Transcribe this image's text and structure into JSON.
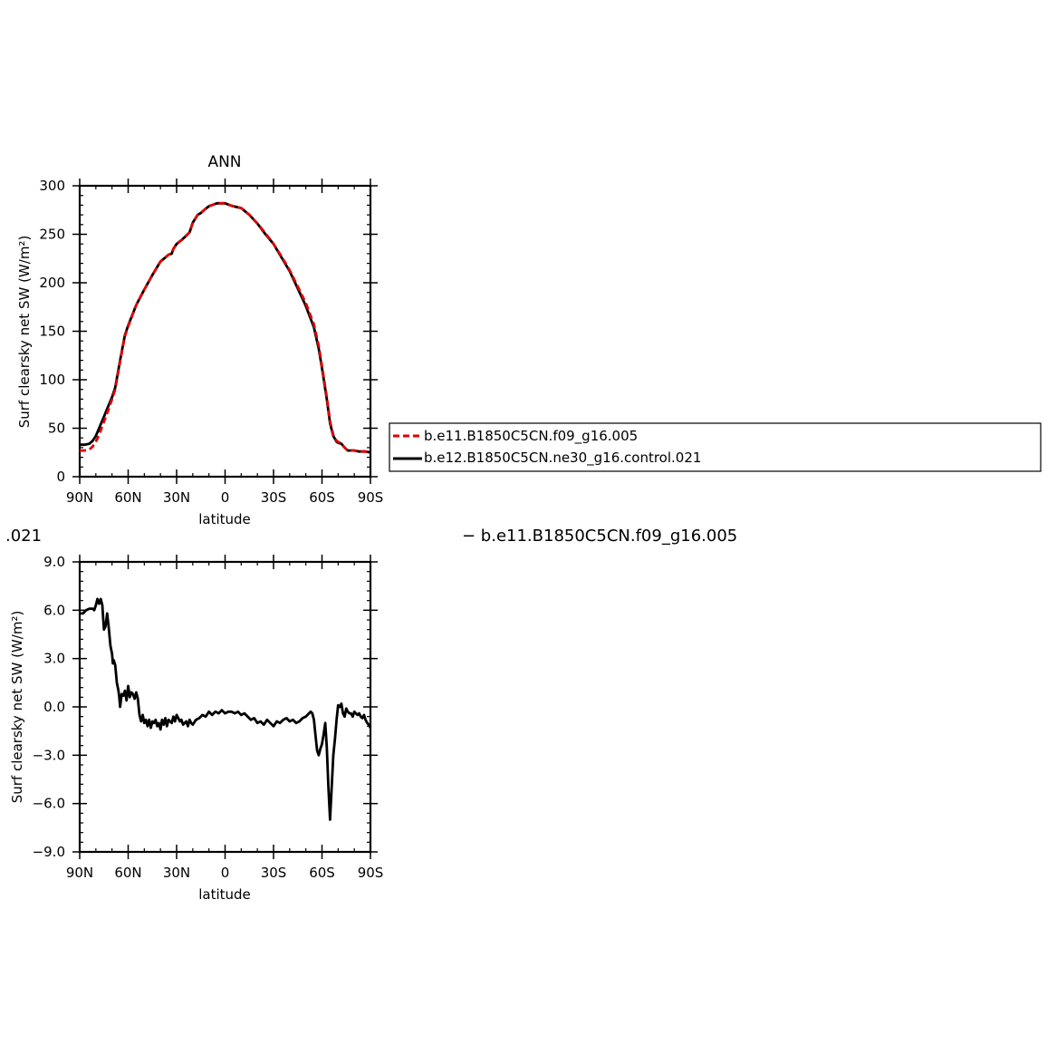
{
  "top_panel": {
    "title": "ANN",
    "xlabel": "latitude",
    "ylabel": "Surf clearsky net SW (W/m²)"
  },
  "bottom_panel": {
    "xlabel": "latitude",
    "ylabel": "Surf clearsky net SW (W/m²)"
  },
  "legend": {
    "entries": [
      {
        "label": "b.e11.B1850C5CN.f09_g16.005",
        "color": "#e00000",
        "style": "dashed"
      },
      {
        "label": "b.e12.B1850C5CN.ne30_g16.control.021",
        "color": "#000000",
        "style": "solid"
      }
    ]
  },
  "overlap_text": {
    "left_fragment": ".021",
    "right_fragment": "− b.e11.B1850C5CN.f09_g16.005"
  },
  "chart_data": [
    {
      "type": "line",
      "title": "ANN",
      "xlabel": "latitude",
      "ylabel": "Surf clearsky net SW (W/m²)",
      "x_ticks": [
        {
          "value": 90,
          "label": "90N"
        },
        {
          "value": 60,
          "label": "60N"
        },
        {
          "value": 30,
          "label": "30N"
        },
        {
          "value": 0,
          "label": "0"
        },
        {
          "value": -30,
          "label": "30S"
        },
        {
          "value": -60,
          "label": "60S"
        },
        {
          "value": -90,
          "label": "90S"
        }
      ],
      "xlim": [
        90,
        -90
      ],
      "ylim": [
        0,
        300
      ],
      "y_ticks": [
        0,
        50,
        100,
        150,
        200,
        250,
        300
      ],
      "series": [
        {
          "name": "b.e12.B1850C5CN.ne30_g16.control.021",
          "color": "#000000",
          "dash": "solid",
          "x": [
            90,
            87,
            84,
            82,
            80,
            78,
            75,
            72,
            70,
            68,
            65,
            62,
            60,
            55,
            50,
            45,
            40,
            37,
            35,
            33,
            32,
            30,
            27,
            25,
            22,
            20,
            17,
            15,
            13,
            10,
            5,
            2,
            0,
            -3,
            -5,
            -10,
            -15,
            -20,
            -25,
            -30,
            -35,
            -40,
            -45,
            -50,
            -55,
            -58,
            -60,
            -63,
            -65,
            -67,
            -69,
            -70,
            -72,
            -74,
            -76,
            -78,
            -80,
            -83,
            -85,
            -87,
            -90
          ],
          "y": [
            33,
            33,
            34,
            37,
            42,
            50,
            62,
            74,
            82,
            92,
            120,
            146,
            156,
            177,
            193,
            208,
            222,
            226,
            229,
            230,
            235,
            240,
            244,
            247,
            252,
            262,
            270,
            272,
            275,
            279,
            282,
            282,
            282,
            280,
            279,
            277,
            270,
            261,
            250,
            240,
            226,
            212,
            194,
            176,
            154,
            132,
            112,
            80,
            55,
            42,
            36,
            35,
            34,
            30,
            27,
            27,
            27,
            26,
            26,
            26,
            25
          ]
        },
        {
          "name": "b.e11.B1850C5CN.f09_g16.005",
          "color": "#e00000",
          "dash": "dashed",
          "x": [
            90,
            87,
            84,
            82,
            80,
            78,
            75,
            72,
            70,
            68,
            65,
            62,
            60,
            55,
            50,
            45,
            40,
            37,
            35,
            33,
            32,
            30,
            27,
            25,
            22,
            20,
            17,
            15,
            13,
            10,
            5,
            2,
            0,
            -3,
            -5,
            -10,
            -15,
            -20,
            -25,
            -30,
            -35,
            -40,
            -45,
            -50,
            -55,
            -58,
            -60,
            -63,
            -65,
            -67,
            -69,
            -70,
            -72,
            -74,
            -76,
            -78,
            -80,
            -83,
            -85,
            -87,
            -90
          ],
          "y": [
            27,
            27,
            28,
            31,
            36,
            43,
            57,
            70,
            80,
            90,
            119,
            145,
            155,
            177,
            193,
            208,
            222,
            226,
            229,
            230,
            235,
            240,
            244,
            247,
            252,
            262,
            270,
            272,
            275,
            279,
            282,
            282,
            282,
            280,
            279,
            277,
            270,
            261,
            251,
            240,
            227,
            213,
            196,
            179,
            157,
            135,
            114,
            82,
            57,
            43,
            37,
            36,
            34,
            30,
            27,
            27,
            27,
            26,
            26,
            26,
            25
          ]
        }
      ]
    },
    {
      "type": "line",
      "xlabel": "latitude",
      "ylabel": "Surf clearsky net SW (W/m²)",
      "x_ticks": [
        {
          "value": 90,
          "label": "90N"
        },
        {
          "value": 60,
          "label": "60N"
        },
        {
          "value": 30,
          "label": "30N"
        },
        {
          "value": 0,
          "label": "0"
        },
        {
          "value": -30,
          "label": "30S"
        },
        {
          "value": -60,
          "label": "60S"
        },
        {
          "value": -90,
          "label": "90S"
        }
      ],
      "xlim": [
        90,
        -90
      ],
      "ylim": [
        -9.0,
        9.0
      ],
      "y_ticks": [
        {
          "value": 9,
          "label": "9.0"
        },
        {
          "value": 6,
          "label": "6.0"
        },
        {
          "value": 3,
          "label": "3.0"
        },
        {
          "value": 0,
          "label": "0.0"
        },
        {
          "value": -3,
          "label": "−3.0"
        },
        {
          "value": -6,
          "label": "−6.0"
        },
        {
          "value": -9,
          "label": "−9.0"
        }
      ],
      "series": [
        {
          "color": "#000000",
          "dash": "solid",
          "x": [
            90,
            88,
            86,
            84,
            82,
            81,
            80,
            79,
            78,
            77,
            76,
            75.5,
            75,
            74,
            73,
            72,
            71,
            70,
            69.5,
            69,
            68,
            67,
            66,
            65.5,
            65,
            64,
            63,
            62,
            61,
            60,
            59,
            58,
            57,
            56,
            55,
            54,
            53,
            52,
            51,
            50,
            49,
            48,
            47,
            46,
            45,
            44,
            43,
            42,
            41,
            40,
            39,
            38,
            37,
            36,
            35,
            34,
            33,
            32,
            31,
            30,
            29,
            28,
            27,
            26,
            25,
            24,
            23,
            22,
            21,
            20,
            18,
            16,
            14,
            12,
            10,
            8,
            6,
            4,
            2,
            0,
            -2,
            -4,
            -6,
            -8,
            -10,
            -12,
            -14,
            -16,
            -18,
            -20,
            -22,
            -24,
            -26,
            -28,
            -30,
            -32,
            -34,
            -36,
            -38,
            -40,
            -42,
            -44,
            -46,
            -48,
            -50,
            -52,
            -53,
            -54,
            -55,
            -56,
            -57,
            -58,
            -59,
            -60,
            -61,
            -62,
            -63,
            -64,
            -65,
            -66,
            -67,
            -68,
            -69,
            -70,
            -71,
            -72,
            -73,
            -74,
            -75,
            -76,
            -77,
            -78,
            -79,
            -80,
            -81,
            -82,
            -83,
            -84,
            -85,
            -86,
            -87,
            -88,
            -89,
            -90
          ],
          "y": [
            5.8,
            5.8,
            6.0,
            6.1,
            6.1,
            6.0,
            6.3,
            6.7,
            6.4,
            6.7,
            6.3,
            5.5,
            4.8,
            5.0,
            5.8,
            4.9,
            3.8,
            3.3,
            2.7,
            2.9,
            2.6,
            1.5,
            1.0,
            0.6,
            0.0,
            0.8,
            0.7,
            1.0,
            0.4,
            1.3,
            0.6,
            0.9,
            0.8,
            0.5,
            0.9,
            0.5,
            -0.5,
            -0.9,
            -0.5,
            -1.0,
            -0.8,
            -1.2,
            -0.8,
            -1.3,
            -0.9,
            -1.0,
            -0.8,
            -1.2,
            -1.0,
            -1.4,
            -0.8,
            -1.1,
            -0.7,
            -1.2,
            -0.8,
            -0.9,
            -1.0,
            -0.6,
            -0.9,
            -0.5,
            -0.7,
            -0.9,
            -0.8,
            -1.1,
            -1.0,
            -0.9,
            -1.2,
            -0.8,
            -1.0,
            -1.1,
            -0.8,
            -0.7,
            -0.5,
            -0.6,
            -0.3,
            -0.5,
            -0.3,
            -0.4,
            -0.2,
            -0.4,
            -0.3,
            -0.3,
            -0.4,
            -0.3,
            -0.5,
            -0.4,
            -0.6,
            -0.8,
            -0.7,
            -1.0,
            -0.9,
            -1.1,
            -0.8,
            -1.0,
            -1.2,
            -0.9,
            -1.0,
            -0.8,
            -0.7,
            -0.9,
            -0.8,
            -1.0,
            -0.9,
            -0.7,
            -0.6,
            -0.4,
            -0.3,
            -0.4,
            -0.8,
            -1.8,
            -2.7,
            -3.0,
            -2.6,
            -2.3,
            -1.7,
            -1.0,
            -2.5,
            -5.0,
            -7.0,
            -5.0,
            -3.0,
            -2.0,
            -0.8,
            0.1,
            0.0,
            0.2,
            -0.4,
            -0.6,
            -0.1,
            -0.3,
            -0.4,
            -0.4,
            -0.6,
            -0.3,
            -0.4,
            -0.5,
            -0.4,
            -0.6,
            -0.7,
            -0.5,
            -0.8,
            -1.0,
            -1.1,
            -1.3
          ]
        }
      ]
    }
  ]
}
